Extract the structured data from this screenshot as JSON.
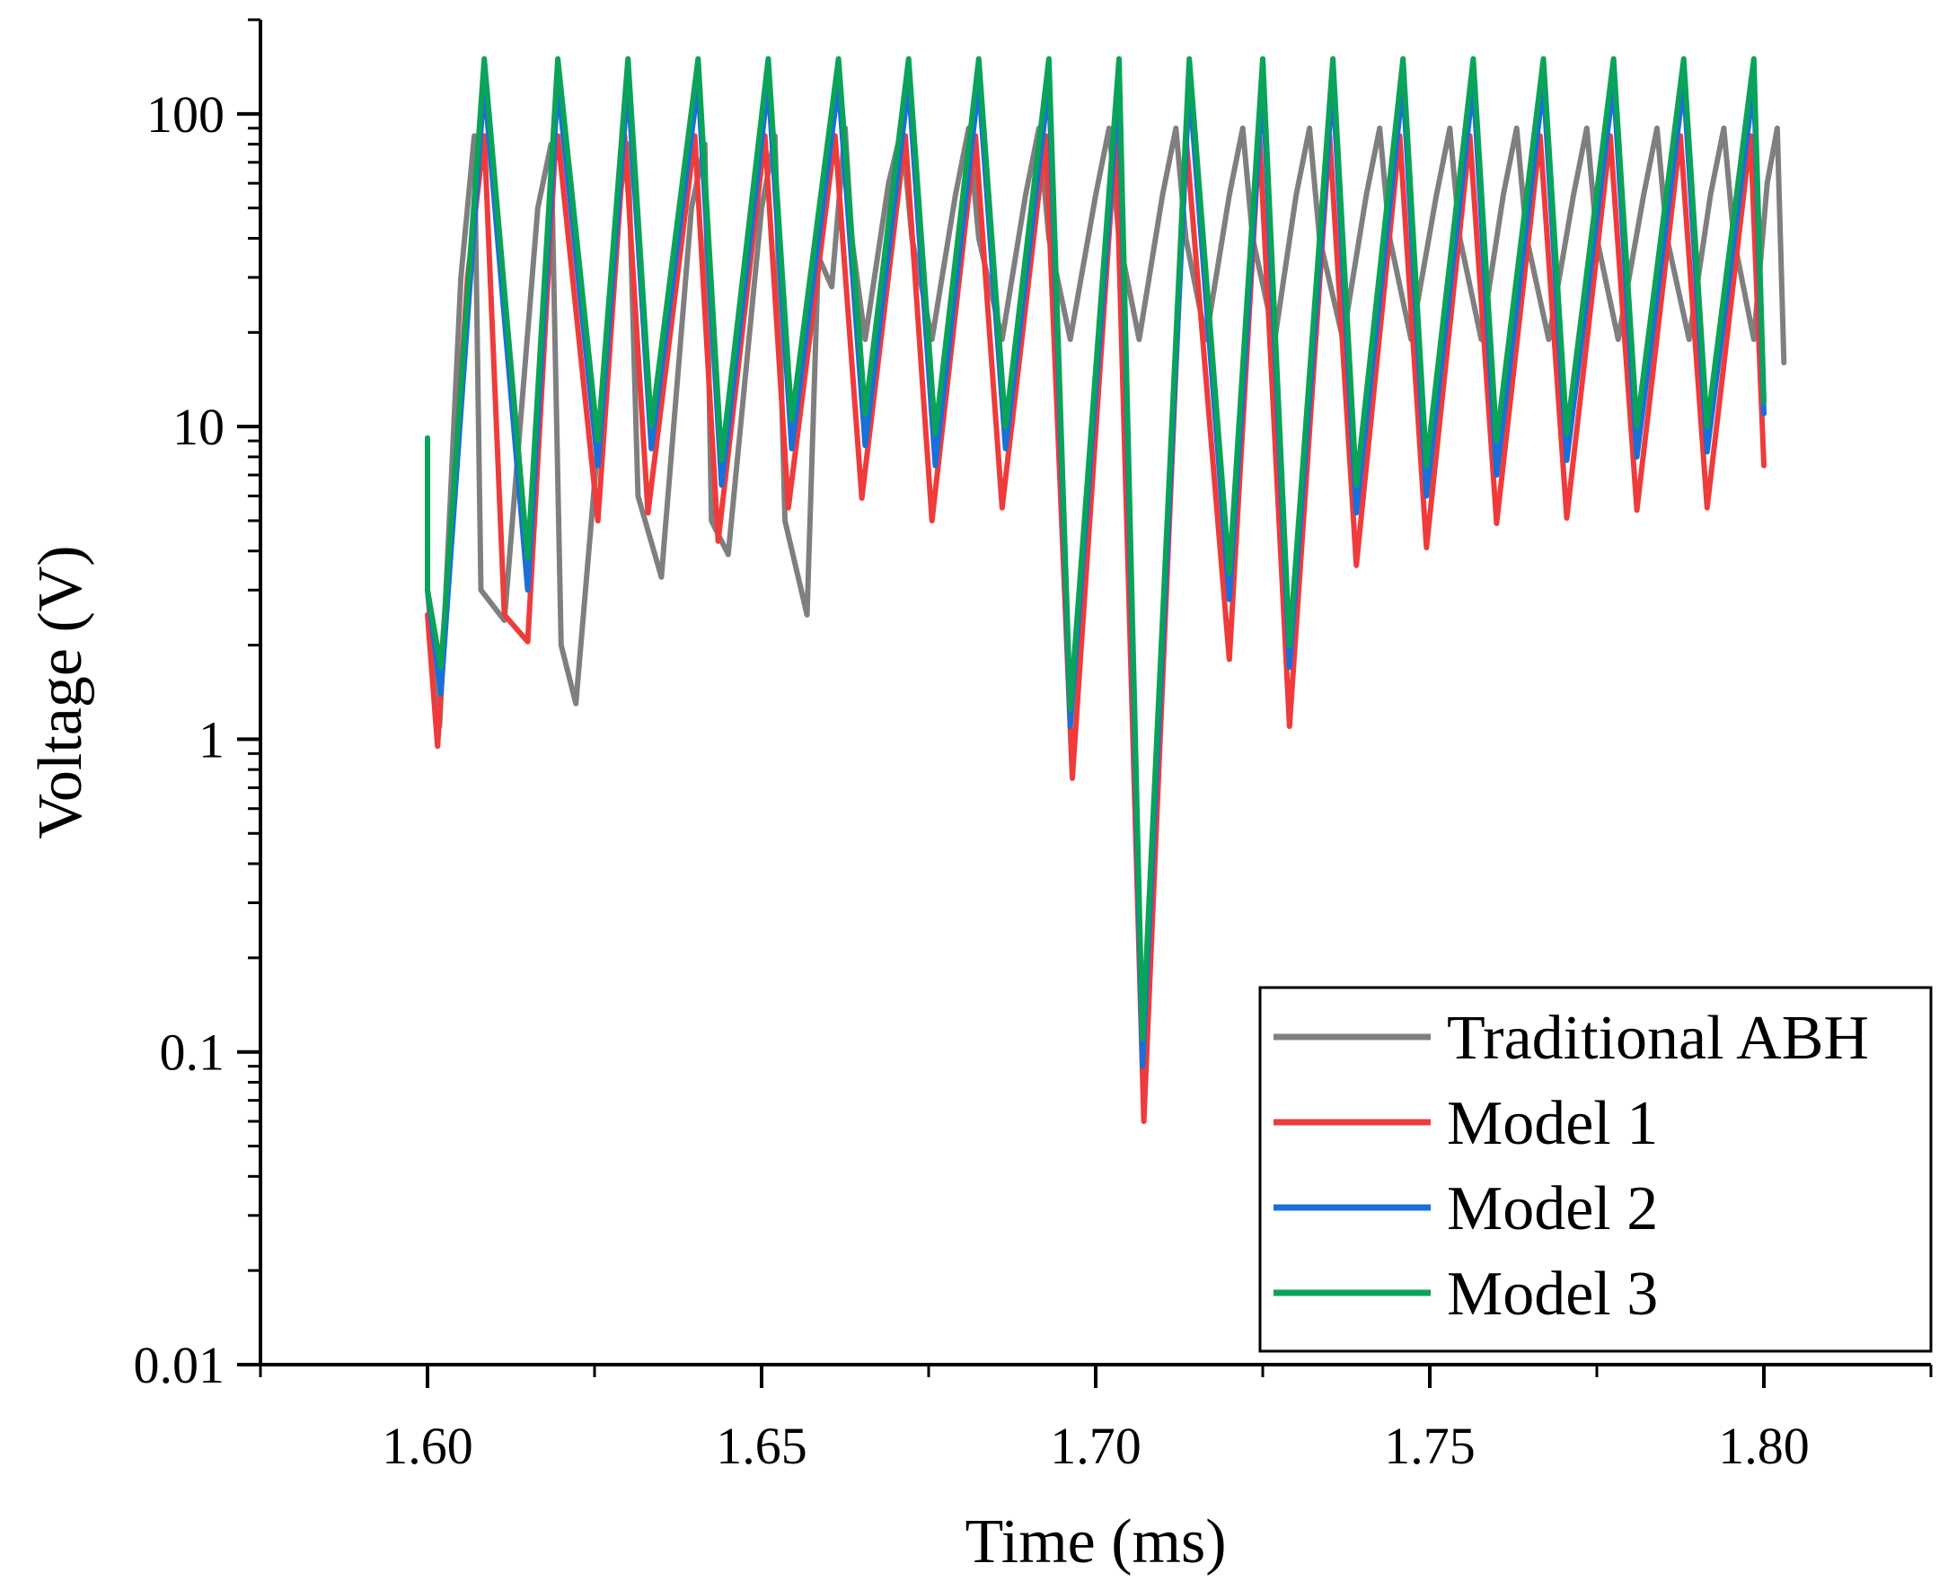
{
  "chart_data": {
    "type": "line",
    "title": "",
    "xlabel": "Time (ms)",
    "ylabel": "Voltage (V)",
    "xlim": [
      1.575,
      1.825
    ],
    "ylim": [
      0.01,
      200
    ],
    "yscale": "log",
    "x_ticks": [
      1.6,
      1.65,
      1.7,
      1.75,
      1.8
    ],
    "x_tick_labels": [
      "1.60",
      "1.65",
      "1.70",
      "1.75",
      "1.80"
    ],
    "y_ticks": [
      0.01,
      0.1,
      1,
      10,
      100
    ],
    "y_tick_labels": [
      "0.01",
      "0.1",
      "1",
      "10",
      "100"
    ],
    "grid": false,
    "legend_position": "bottom-right",
    "series": [
      {
        "name": "Traditional ABH",
        "color": "#7f7f7f",
        "points": [
          [
            1.6,
            3.0
          ],
          [
            1.6018,
            1.1
          ],
          [
            1.605,
            30
          ],
          [
            1.607,
            85
          ],
          [
            1.608,
            3.0
          ],
          [
            1.6115,
            2.4
          ],
          [
            1.6165,
            50
          ],
          [
            1.6185,
            80
          ],
          [
            1.62,
            2.0
          ],
          [
            1.6222,
            1.3
          ],
          [
            1.6285,
            50
          ],
          [
            1.63,
            80
          ],
          [
            1.6315,
            6.0
          ],
          [
            1.635,
            3.3
          ],
          [
            1.6395,
            50
          ],
          [
            1.6415,
            80
          ],
          [
            1.6425,
            5.0
          ],
          [
            1.645,
            3.9
          ],
          [
            1.65,
            50
          ],
          [
            1.652,
            85
          ],
          [
            1.6535,
            5.0
          ],
          [
            1.6568,
            2.5
          ],
          [
            1.6585,
            35
          ],
          [
            1.6605,
            28
          ],
          [
            1.6625,
            90
          ],
          [
            1.6635,
            40
          ],
          [
            1.6655,
            19
          ],
          [
            1.669,
            60
          ],
          [
            1.671,
            90
          ],
          [
            1.6725,
            40
          ],
          [
            1.6755,
            19
          ],
          [
            1.679,
            55
          ],
          [
            1.681,
            90
          ],
          [
            1.6825,
            40
          ],
          [
            1.686,
            19
          ],
          [
            1.6895,
            55
          ],
          [
            1.6915,
            90
          ],
          [
            1.693,
            40
          ],
          [
            1.6962,
            19
          ],
          [
            1.7,
            55
          ],
          [
            1.702,
            90
          ],
          [
            1.7035,
            40
          ],
          [
            1.7065,
            19
          ],
          [
            1.71,
            55
          ],
          [
            1.712,
            90
          ],
          [
            1.7135,
            40
          ],
          [
            1.7165,
            19
          ],
          [
            1.72,
            55
          ],
          [
            1.722,
            90
          ],
          [
            1.7235,
            40
          ],
          [
            1.7268,
            19
          ],
          [
            1.73,
            55
          ],
          [
            1.732,
            90
          ],
          [
            1.7335,
            40
          ],
          [
            1.737,
            19
          ],
          [
            1.7405,
            55
          ],
          [
            1.7425,
            90
          ],
          [
            1.744,
            40
          ],
          [
            1.7472,
            19
          ],
          [
            1.751,
            55
          ],
          [
            1.753,
            90
          ],
          [
            1.7545,
            40
          ],
          [
            1.7577,
            19
          ],
          [
            1.761,
            55
          ],
          [
            1.763,
            90
          ],
          [
            1.7645,
            40
          ],
          [
            1.7678,
            19
          ],
          [
            1.7715,
            55
          ],
          [
            1.7735,
            90
          ],
          [
            1.775,
            40
          ],
          [
            1.7782,
            19
          ],
          [
            1.782,
            55
          ],
          [
            1.784,
            90
          ],
          [
            1.7855,
            40
          ],
          [
            1.7888,
            19
          ],
          [
            1.792,
            55
          ],
          [
            1.794,
            90
          ],
          [
            1.7955,
            40
          ],
          [
            1.7985,
            19
          ],
          [
            1.8005,
            60
          ],
          [
            1.802,
            90
          ],
          [
            1.803,
            16
          ]
        ]
      },
      {
        "name": "Model 1",
        "color": "#ef3b3b",
        "points": [
          [
            1.6,
            2.5
          ],
          [
            1.6015,
            0.95
          ],
          [
            1.606,
            30
          ],
          [
            1.6085,
            85
          ],
          [
            1.6115,
            2.5
          ],
          [
            1.615,
            2.05
          ],
          [
            1.619,
            70
          ],
          [
            1.6195,
            85
          ],
          [
            1.6255,
            5.0
          ],
          [
            1.6295,
            85
          ],
          [
            1.633,
            5.3
          ],
          [
            1.64,
            85
          ],
          [
            1.6435,
            4.3
          ],
          [
            1.6505,
            85
          ],
          [
            1.654,
            5.5
          ],
          [
            1.661,
            85
          ],
          [
            1.665,
            5.9
          ],
          [
            1.6715,
            85
          ],
          [
            1.6755,
            5.0
          ],
          [
            1.682,
            85
          ],
          [
            1.686,
            5.5
          ],
          [
            1.6925,
            85
          ],
          [
            1.6965,
            0.75
          ],
          [
            1.703,
            85
          ],
          [
            1.7072,
            0.06
          ],
          [
            1.7135,
            85
          ],
          [
            1.72,
            1.8
          ],
          [
            1.7245,
            85
          ],
          [
            1.729,
            1.1
          ],
          [
            1.735,
            85
          ],
          [
            1.739,
            3.6
          ],
          [
            1.7455,
            85
          ],
          [
            1.7495,
            4.1
          ],
          [
            1.756,
            85
          ],
          [
            1.76,
            4.9
          ],
          [
            1.7665,
            85
          ],
          [
            1.7705,
            5.1
          ],
          [
            1.777,
            85
          ],
          [
            1.781,
            5.4
          ],
          [
            1.7875,
            85
          ],
          [
            1.7915,
            5.5
          ],
          [
            1.798,
            85
          ],
          [
            1.8,
            7.5
          ]
        ]
      },
      {
        "name": "Model 2",
        "color": "#1a6fd8",
        "points": [
          [
            1.6,
            3.0
          ],
          [
            1.602,
            1.4
          ],
          [
            1.6085,
            125
          ],
          [
            1.615,
            3.0
          ],
          [
            1.6195,
            125
          ],
          [
            1.6255,
            7.5
          ],
          [
            1.63,
            125
          ],
          [
            1.6335,
            8.5
          ],
          [
            1.6405,
            125
          ],
          [
            1.644,
            6.5
          ],
          [
            1.651,
            125
          ],
          [
            1.6545,
            8.5
          ],
          [
            1.6615,
            125
          ],
          [
            1.6655,
            8.7
          ],
          [
            1.672,
            125
          ],
          [
            1.676,
            7.5
          ],
          [
            1.6825,
            125
          ],
          [
            1.6865,
            8.5
          ],
          [
            1.693,
            125
          ],
          [
            1.6962,
            1.1
          ],
          [
            1.7035,
            125
          ],
          [
            1.707,
            0.09
          ],
          [
            1.714,
            125
          ],
          [
            1.72,
            2.8
          ],
          [
            1.725,
            125
          ],
          [
            1.729,
            1.7
          ],
          [
            1.7355,
            125
          ],
          [
            1.739,
            5.3
          ],
          [
            1.746,
            125
          ],
          [
            1.7495,
            6.0
          ],
          [
            1.7565,
            125
          ],
          [
            1.76,
            7.0
          ],
          [
            1.767,
            125
          ],
          [
            1.7705,
            7.8
          ],
          [
            1.7775,
            125
          ],
          [
            1.781,
            8.0
          ],
          [
            1.788,
            125
          ],
          [
            1.7915,
            8.3
          ],
          [
            1.7985,
            125
          ],
          [
            1.8,
            11
          ]
        ]
      },
      {
        "name": "Model 3",
        "color": "#0aa35a",
        "points": [
          [
            1.6,
            9.2
          ],
          [
            1.6,
            3.0
          ],
          [
            1.602,
            1.7
          ],
          [
            1.6085,
            150
          ],
          [
            1.615,
            3.8
          ],
          [
            1.6195,
            150
          ],
          [
            1.6255,
            9.0
          ],
          [
            1.63,
            150
          ],
          [
            1.6335,
            10
          ],
          [
            1.6405,
            150
          ],
          [
            1.644,
            7.8
          ],
          [
            1.651,
            150
          ],
          [
            1.6545,
            10.5
          ],
          [
            1.6615,
            150
          ],
          [
            1.6655,
            11
          ],
          [
            1.672,
            150
          ],
          [
            1.676,
            9.5
          ],
          [
            1.6825,
            150
          ],
          [
            1.6865,
            10
          ],
          [
            1.693,
            150
          ],
          [
            1.6962,
            1.25
          ],
          [
            1.7035,
            150
          ],
          [
            1.707,
            0.11
          ],
          [
            1.714,
            150
          ],
          [
            1.72,
            3.4
          ],
          [
            1.725,
            150
          ],
          [
            1.729,
            2.0
          ],
          [
            1.7355,
            150
          ],
          [
            1.739,
            6.5
          ],
          [
            1.746,
            150
          ],
          [
            1.7495,
            7.5
          ],
          [
            1.7565,
            150
          ],
          [
            1.76,
            9.0
          ],
          [
            1.767,
            150
          ],
          [
            1.7705,
            9.5
          ],
          [
            1.7775,
            150
          ],
          [
            1.781,
            10
          ],
          [
            1.788,
            150
          ],
          [
            1.7915,
            10
          ],
          [
            1.7985,
            150
          ],
          [
            1.8,
            12
          ]
        ]
      }
    ]
  }
}
